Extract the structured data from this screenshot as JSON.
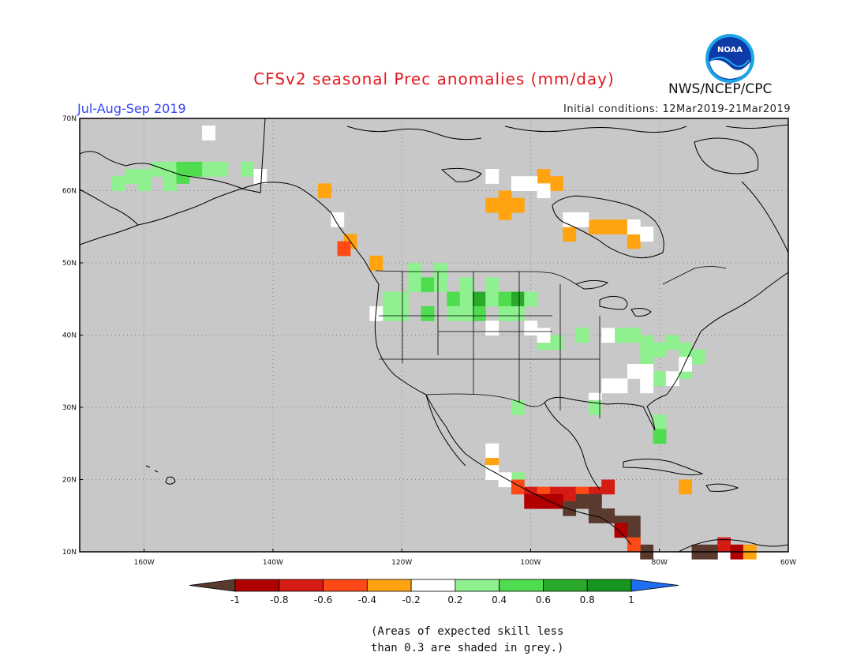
{
  "title": "CFSv2 seasonal Prec anomalies (mm/day)",
  "period": "Jul-Aug-Sep 2019",
  "initial_conditions": "Initial conditions: 12Mar2019-21Mar2019",
  "agency": "NWS/NCEP/CPC",
  "logo_text": "NOAA",
  "latitude_labels": [
    "70N",
    "60N",
    "50N",
    "40N",
    "30N",
    "20N",
    "10N"
  ],
  "longitude_labels": [
    "160W",
    "140W",
    "120W",
    "100W",
    "80W",
    "60W"
  ],
  "colorbar": {
    "tick_labels": [
      "-1",
      "-0.8",
      "-0.6",
      "-0.4",
      "-0.2",
      "0.2",
      "0.4",
      "0.6",
      "0.8",
      "1"
    ],
    "colors": [
      "#5a3a2e",
      "#b00000",
      "#d41c14",
      "#ff4a18",
      "#ffa410",
      "#ffffff",
      "#8ff08f",
      "#4fdc4f",
      "#2aaa2a",
      "#14961e",
      "#1e6ef0"
    ]
  },
  "note_line1": "(Areas of expected skill less",
  "note_line2": " than 0.3 are shaded in grey.)",
  "map_colors": {
    "background": "#c8c8c8",
    "coast": "#000000",
    "grid": "#6e6e6e"
  }
}
